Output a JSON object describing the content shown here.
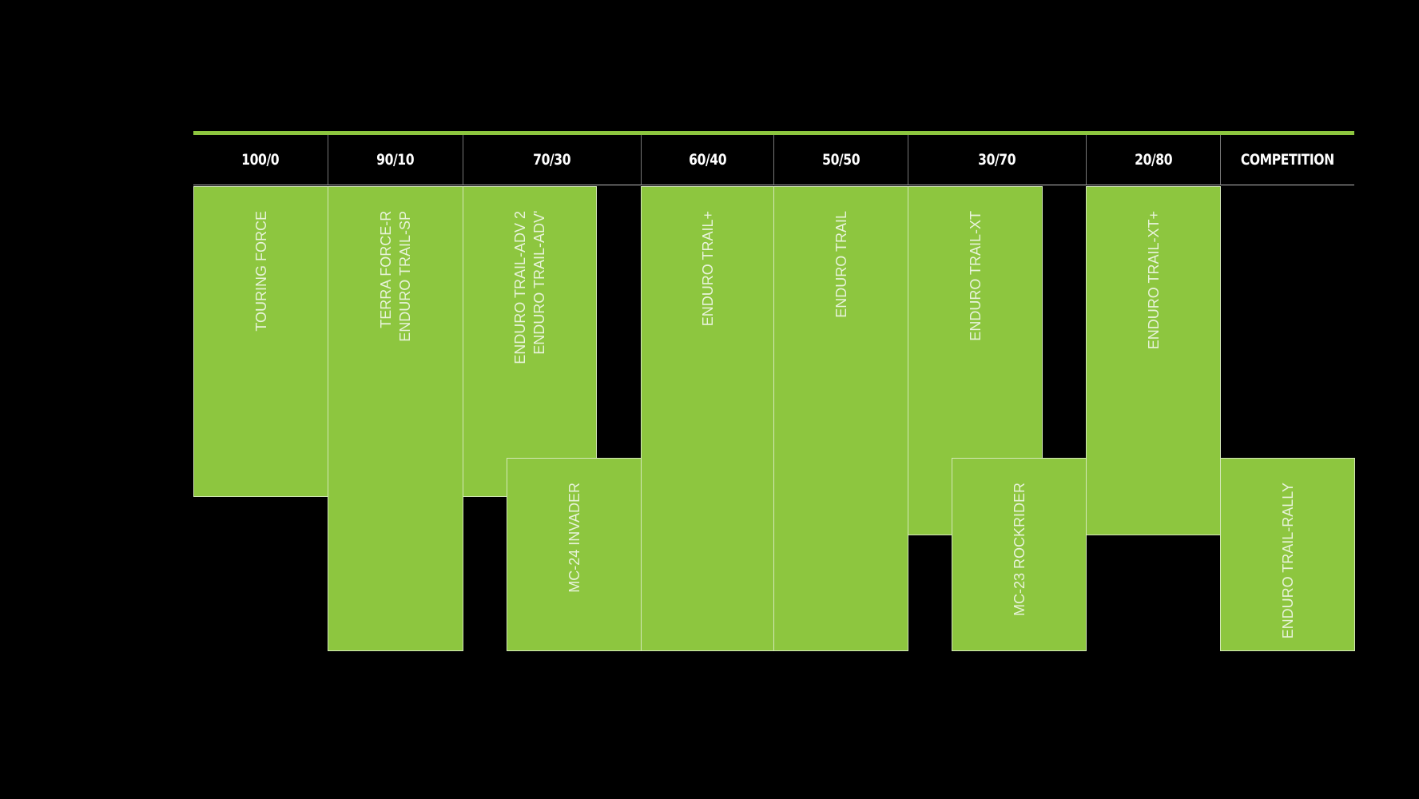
{
  "colors": {
    "background": "#000000",
    "accent": "#8dc63f"
  },
  "headers": [
    "100/0",
    "90/10",
    "70/30",
    "60/40",
    "50/50",
    "30/70",
    "20/80",
    "COMPETITION"
  ],
  "blocks": [
    {
      "label": "TOURING FORCE",
      "column": "100/0"
    },
    {
      "label": "TERRA FORCE-R\nENDURO TRAIL-SP",
      "column": "90/10"
    },
    {
      "label": "ENDURO TRAIL-ADV 2\nENDURO TRAIL-ADV'",
      "column": "70/30"
    },
    {
      "label": "MC-24 INVADER",
      "column": "70/30 – 60/40"
    },
    {
      "label": "ENDURO TRAIL+",
      "column": "60/40"
    },
    {
      "label": "ENDURO TRAIL",
      "column": "50/50"
    },
    {
      "label": "ENDURO TRAIL-XT",
      "column": "30/70"
    },
    {
      "label": "MC-23 ROCKRIDER",
      "column": "30/70 – 20/80"
    },
    {
      "label": "ENDURO TRAIL-XT+",
      "column": "20/80"
    },
    {
      "label": "ENDURO TRAIL-RALLY",
      "column": "COMPETITION"
    }
  ]
}
